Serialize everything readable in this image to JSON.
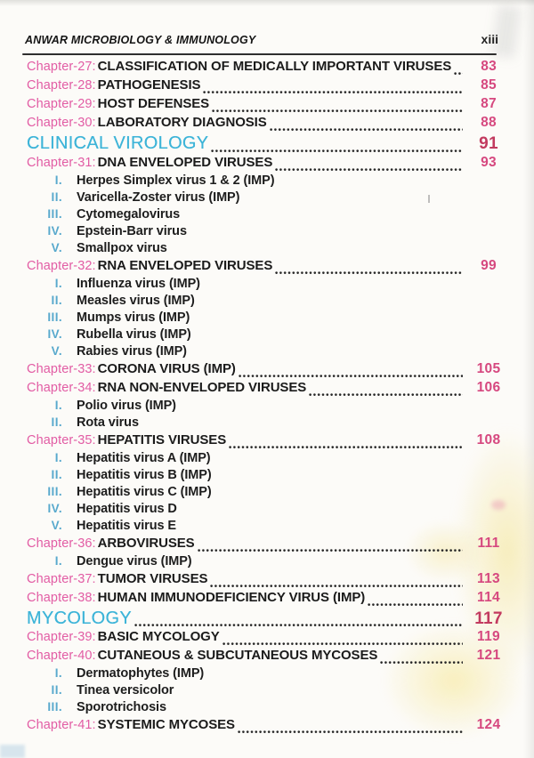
{
  "header": {
    "title": "ANWAR MICROBIOLOGY & IMMUNOLOGY",
    "page_number": "xiii"
  },
  "colors": {
    "chapter_label_pink": "#e25ca4",
    "page_number_pink": "#d6487f",
    "section_crimson": "#c23a5f",
    "section_cyan": "#3db4d8",
    "numeral_cyan": "#58a9cd"
  },
  "toc": {
    "entries": [
      {
        "type": "chapter",
        "label": "Chapter-27:",
        "title": "CLASSIFICATION OF MEDICALLY IMPORTANT VIRUSES",
        "page": "83",
        "subs": []
      },
      {
        "type": "chapter",
        "label": "Chapter-28:",
        "title": "PATHOGENESIS",
        "page": "85",
        "subs": []
      },
      {
        "type": "chapter",
        "label": "Chapter-29:",
        "title": "HOST DEFENSES",
        "page": "87",
        "subs": []
      },
      {
        "type": "chapter",
        "label": "Chapter-30:",
        "title": "LABORATORY DIAGNOSIS",
        "page": "88",
        "subs": []
      },
      {
        "type": "section",
        "title": "CLINICAL VIROLOGY",
        "page": "91",
        "subs": []
      },
      {
        "type": "chapter",
        "label": "Chapter-31:",
        "title": "DNA ENVELOPED VIRUSES",
        "page": "93",
        "subs": [
          {
            "numeral": "I.",
            "title": "Herpes Simplex virus 1 & 2 (IMP)"
          },
          {
            "numeral": "II.",
            "title": "Varicella-Zoster virus (IMP)"
          },
          {
            "numeral": "III.",
            "title": "Cytomegalovirus"
          },
          {
            "numeral": "IV.",
            "title": "Epstein-Barr virus"
          },
          {
            "numeral": "V.",
            "title": "Smallpox virus"
          }
        ]
      },
      {
        "type": "chapter",
        "label": "Chapter-32:",
        "title": "RNA ENVELOPED VIRUSES",
        "page": "99",
        "subs": [
          {
            "numeral": "I.",
            "title": "Influenza virus (IMP)"
          },
          {
            "numeral": "II.",
            "title": "Measles virus (IMP)"
          },
          {
            "numeral": "III.",
            "title": "Mumps virus (IMP)"
          },
          {
            "numeral": "IV.",
            "title": "Rubella virus (IMP)"
          },
          {
            "numeral": "V.",
            "title": "Rabies virus (IMP)"
          }
        ]
      },
      {
        "type": "chapter",
        "label": "Chapter-33:",
        "title": "CORONA VIRUS (IMP) ",
        "page": "105",
        "subs": []
      },
      {
        "type": "chapter",
        "label": "Chapter-34:",
        "title": "RNA NON-ENVELOPED VIRUSES",
        "page": "106",
        "subs": [
          {
            "numeral": "I.",
            "title": "Polio virus (IMP)"
          },
          {
            "numeral": "II.",
            "title": "Rota virus"
          }
        ]
      },
      {
        "type": "chapter",
        "label": "Chapter-35:",
        "title": "HEPATITIS VIRUSES",
        "page": "108",
        "subs": [
          {
            "numeral": "I.",
            "title": "Hepatitis virus A (IMP)"
          },
          {
            "numeral": "II.",
            "title": "Hepatitis virus B (IMP)"
          },
          {
            "numeral": "III.",
            "title": "Hepatitis virus C (IMP)"
          },
          {
            "numeral": "IV.",
            "title": "Hepatitis virus D"
          },
          {
            "numeral": "V.",
            "title": "Hepatitis virus E"
          }
        ]
      },
      {
        "type": "chapter",
        "label": "Chapter-36:",
        "title": "ARBOVIRUSES",
        "page": "111",
        "subs": [
          {
            "numeral": "I.",
            "title": "Dengue virus (IMP)"
          }
        ]
      },
      {
        "type": "chapter",
        "label": "Chapter-37:",
        "title": "TUMOR VIRUSES",
        "page": "113",
        "subs": []
      },
      {
        "type": "chapter",
        "label": "Chapter-38:",
        "title": "HUMAN IMMUNODEFICIENCY VIRUS (IMP) ",
        "page": "114",
        "subs": []
      },
      {
        "type": "section",
        "title": "MYCOLOGY",
        "page": "117",
        "subs": []
      },
      {
        "type": "chapter",
        "label": "Chapter-39:",
        "title": "BASIC MYCOLOGY",
        "page": "119",
        "subs": []
      },
      {
        "type": "chapter",
        "label": "Chapter-40:",
        "title": "CUTANEOUS & SUBCUTANEOUS MYCOSES",
        "page": "121",
        "subs": [
          {
            "numeral": "I.",
            "title": "Dermatophytes (IMP)"
          },
          {
            "numeral": "II.",
            "title": "Tinea versicolor"
          },
          {
            "numeral": "III.",
            "title": "Sporotrichosis"
          }
        ]
      },
      {
        "type": "chapter",
        "label": "Chapter-41:",
        "title": "SYSTEMIC MYCOSES",
        "page": "124",
        "subs": []
      }
    ]
  }
}
